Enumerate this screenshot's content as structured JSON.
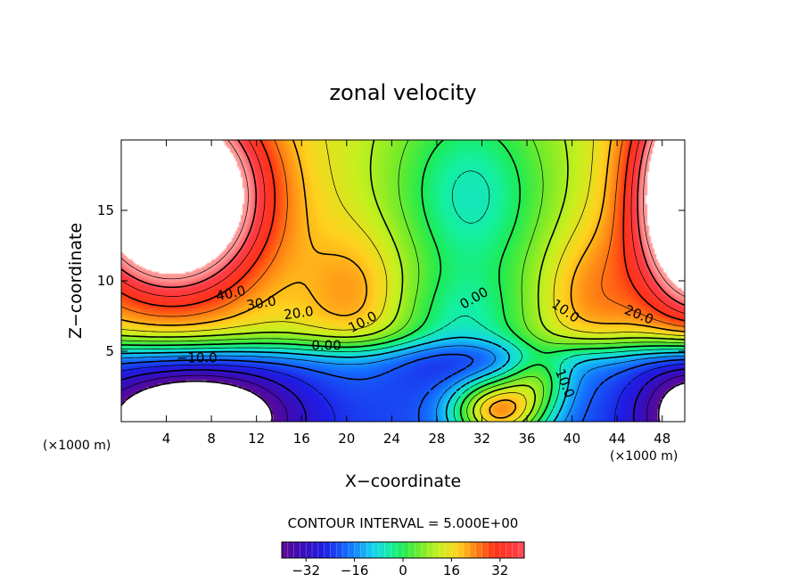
{
  "chart_data": {
    "type": "heatmap",
    "subtype": "filled contour",
    "title": "zonal velocity",
    "xlabel": "X−coordinate",
    "ylabel": "Z−coordinate",
    "x_unit": "(×1000 m)",
    "y_unit": "(×1000 m)",
    "xlim": [
      0,
      50
    ],
    "ylim": [
      0,
      20
    ],
    "x_ticks": [
      4,
      8,
      12,
      16,
      20,
      24,
      28,
      32,
      36,
      40,
      44,
      48
    ],
    "y_ticks": [
      5,
      10,
      15
    ],
    "contour_interval_text": "CONTOUR INTERVAL = 5.000E+00",
    "contour_interval": 5,
    "colorbar": {
      "min": -40,
      "max": 40,
      "ticks": [
        "−32",
        "−16",
        "0",
        "16",
        "32"
      ],
      "tick_values": [
        -32,
        -16,
        0,
        16,
        32
      ]
    },
    "contour_labels": [
      {
        "text": "40.0",
        "x": 9.8,
        "z": 8.8,
        "angle": -12
      },
      {
        "text": "30.0",
        "x": 12.5,
        "z": 8.1,
        "angle": -10
      },
      {
        "text": "20.0",
        "x": 15.8,
        "z": 7.4,
        "angle": -8
      },
      {
        "text": "10.0",
        "x": 21.6,
        "z": 6.8,
        "angle": -28
      },
      {
        "text": "0.00",
        "x": 18.2,
        "z": 5.1,
        "angle": 0
      },
      {
        "text": "−10.0",
        "x": 6.7,
        "z": 4.2,
        "angle": 0
      },
      {
        "text": "0.00",
        "x": 31.5,
        "z": 8.5,
        "angle": -30
      },
      {
        "text": "10.0",
        "x": 39.2,
        "z": 7.6,
        "angle": 35
      },
      {
        "text": "20.0",
        "x": 45.8,
        "z": 7.3,
        "angle": 22
      },
      {
        "text": "10.0",
        "x": 39.0,
        "z": 2.6,
        "angle": 68
      }
    ],
    "field_features": [
      {
        "kind": "max",
        "x": 4,
        "z": 16,
        "value": 48
      },
      {
        "kind": "max",
        "x": 50,
        "z": 16,
        "value": 48
      },
      {
        "kind": "min",
        "x": 6,
        "z": 0.2,
        "value": -42
      },
      {
        "kind": "max",
        "x": 33.5,
        "z": 1.0,
        "value": 34
      },
      {
        "kind": "min",
        "x": 31.5,
        "z": 17,
        "value": -6
      }
    ]
  }
}
